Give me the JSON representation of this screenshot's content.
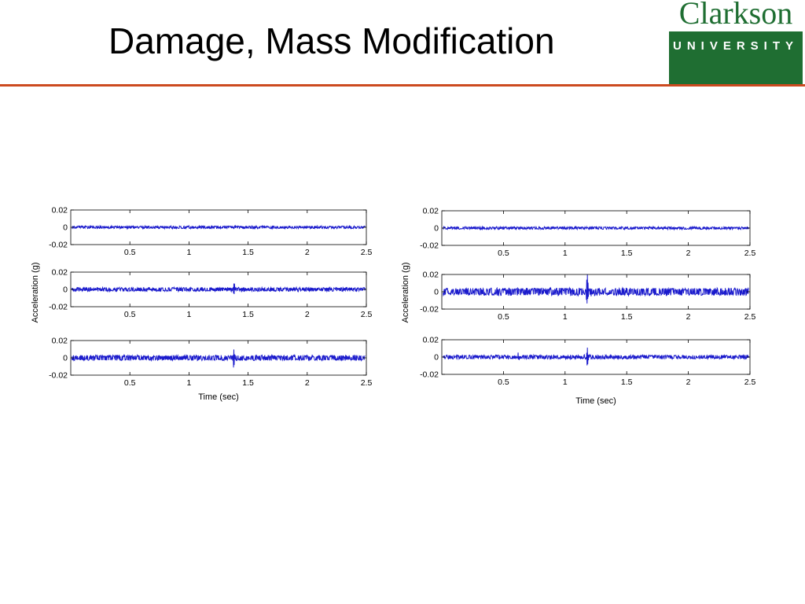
{
  "slide": {
    "title": "Damage, Mass Modification"
  },
  "logo": {
    "wordmark": "Clarkson",
    "subtitle": "UNIVERSITY",
    "colors": {
      "green": "#1f6e32",
      "white": "#ffffff"
    }
  },
  "colors": {
    "rule": "#cc4a1f",
    "signal": "#1a1acc",
    "axes": "#000000"
  },
  "chart_data": [
    {
      "type": "line",
      "title": "",
      "xlabel": "Time (sec)",
      "ylabel": "Acceleration (g)",
      "grid": false,
      "xlim": [
        0,
        2.5
      ],
      "x_ticks": [
        0.5,
        1,
        1.5,
        2,
        2.5
      ],
      "x_tick_labels": [
        "0.5",
        "1",
        "1.5",
        "2",
        "2.5"
      ],
      "y_ticks": [
        0.02,
        0,
        -0.02
      ],
      "y_tick_labels": [
        "0.02",
        "0",
        "-0.02"
      ],
      "subplots": [
        {
          "ylim": [
            -0.02,
            0.02
          ],
          "base_amplitude": 0.0012,
          "spikes": []
        },
        {
          "ylim": [
            -0.02,
            0.02
          ],
          "base_amplitude": 0.0018,
          "spikes": [
            {
              "t": 1.38,
              "amplitude": 0.008
            }
          ]
        },
        {
          "ylim": [
            -0.02,
            0.02
          ],
          "base_amplitude": 0.0025,
          "spikes": [
            {
              "t": 1.38,
              "amplitude": 0.012
            }
          ]
        }
      ]
    },
    {
      "type": "line",
      "title": "",
      "xlabel": "Time (sec)",
      "ylabel": "Acceleration (g)",
      "grid": false,
      "xlim": [
        0,
        2.5
      ],
      "x_ticks": [
        0.5,
        1,
        1.5,
        2,
        2.5
      ],
      "x_tick_labels": [
        "0.5",
        "1",
        "1.5",
        "2",
        "2.5"
      ],
      "y_ticks": [
        0.02,
        0,
        -0.02
      ],
      "y_tick_labels": [
        "0.02",
        "0",
        "-0.02"
      ],
      "subplots": [
        {
          "ylim": [
            -0.02,
            0.02
          ],
          "base_amplitude": 0.0012,
          "spikes": [
            {
              "t": 0.43,
              "amplitude": 0.003
            }
          ]
        },
        {
          "ylim": [
            -0.02,
            0.02
          ],
          "base_amplitude": 0.0035,
          "spikes": [
            {
              "t": 1.18,
              "amplitude": 0.018
            }
          ]
        },
        {
          "ylim": [
            -0.02,
            0.02
          ],
          "base_amplitude": 0.0018,
          "spikes": [
            {
              "t": 1.18,
              "amplitude": 0.01
            },
            {
              "t": 0.62,
              "amplitude": 0.004
            }
          ]
        }
      ]
    }
  ]
}
